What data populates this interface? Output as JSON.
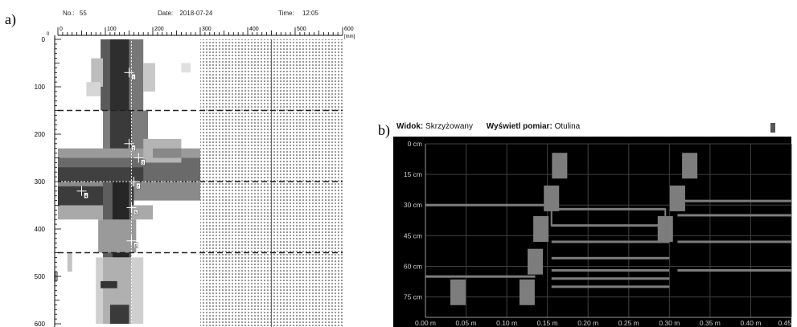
{
  "panel_a": {
    "label": "a)",
    "header": {
      "no_label": "No.:",
      "no_value": "55",
      "date_label": "Date:",
      "date_value": "2018-07-24",
      "time_label": "Time:",
      "time_value": "12:05"
    },
    "top_axis_unit": "[mm]",
    "top_axis_ticks": [
      "0",
      "100",
      "200",
      "300",
      "400",
      "500",
      "600"
    ],
    "top_axis_zero_marker": "0",
    "left_axis_ticks": [
      "0",
      "100",
      "200",
      "300",
      "400",
      "500",
      "600"
    ],
    "dashed_lines_at": [
      150,
      300,
      450
    ],
    "markers": [
      {
        "label": "1"
      },
      {
        "label": "2"
      },
      {
        "label": "3"
      },
      {
        "label": "4"
      },
      {
        "label": "5"
      },
      {
        "label": "6"
      },
      {
        "label": "7"
      }
    ]
  },
  "panel_b": {
    "label": "b)",
    "view_label": "Widok:",
    "view_value": "Skrzyżowany",
    "measure_label": "Wyświetl pomiar:",
    "measure_value": "Otulina",
    "colors": {
      "background": "#000000",
      "grid": "#404040",
      "bar": "#7d7d7d",
      "axis_text": "#cfcfcf"
    }
  },
  "chart_data": {
    "type": "bar",
    "title": "",
    "xlabel": "",
    "ylabel": "",
    "xlim": [
      0,
      0.45
    ],
    "ylim": [
      0,
      85
    ],
    "y_inverted": true,
    "grid": true,
    "x_ticks": [
      "0.00 m",
      "0.05 m",
      "0.10 m",
      "0.15 m",
      "0.20 m",
      "0.25 m",
      "0.30 m",
      "0.35 m",
      "0.40 m",
      "0.45"
    ],
    "y_ticks": [
      "0 cm",
      "15 cm",
      "30 cm",
      "45 cm",
      "60 cm",
      "75 cm"
    ],
    "blocks": [
      {
        "x": 0.165,
        "depth": 6
      },
      {
        "x": 0.155,
        "depth": 22
      },
      {
        "x": 0.142,
        "depth": 37
      },
      {
        "x": 0.135,
        "depth": 53
      },
      {
        "x": 0.125,
        "depth": 68
      },
      {
        "x": 0.04,
        "depth": 68
      },
      {
        "x": 0.325,
        "depth": 6
      },
      {
        "x": 0.31,
        "depth": 22
      },
      {
        "x": 0.295,
        "depth": 37
      }
    ],
    "hlines": [
      {
        "x_start": 0.0,
        "x_end": 0.155,
        "depth": 30
      },
      {
        "x_start": 0.0,
        "x_end": 0.135,
        "depth": 65
      },
      {
        "x_start": 0.155,
        "depth": 40,
        "x_end": 0.295
      },
      {
        "x_start": 0.155,
        "depth": 32,
        "x_end": 0.295
      },
      {
        "x_start": 0.155,
        "depth": 48,
        "x_end": 0.3
      },
      {
        "x_start": 0.155,
        "depth": 56,
        "x_end": 0.3
      },
      {
        "x_start": 0.155,
        "depth": 62,
        "x_end": 0.3
      },
      {
        "x_start": 0.155,
        "depth": 66,
        "x_end": 0.3
      },
      {
        "x_start": 0.155,
        "depth": 70,
        "x_end": 0.3
      },
      {
        "x_start": 0.31,
        "depth": 28,
        "x_end": 0.45
      },
      {
        "x_start": 0.31,
        "depth": 35,
        "x_end": 0.45
      },
      {
        "x_start": 0.31,
        "depth": 48,
        "x_end": 0.45
      },
      {
        "x_start": 0.31,
        "depth": 62,
        "x_end": 0.45
      }
    ]
  }
}
